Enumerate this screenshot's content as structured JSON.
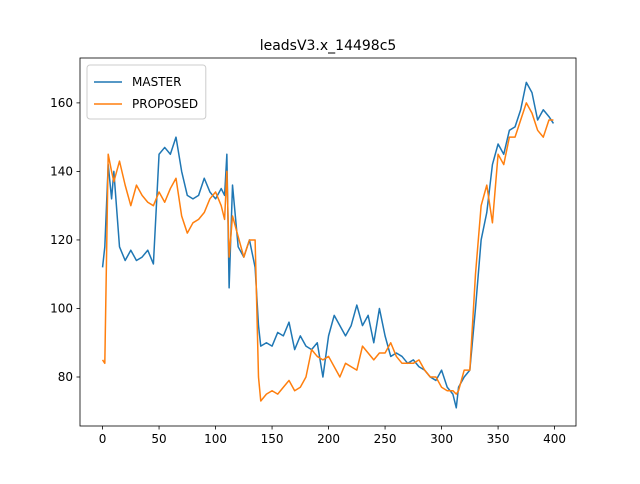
{
  "chart_data": {
    "type": "line",
    "title": "leadsV3.x_14498c5",
    "x": [
      0,
      2,
      5,
      8,
      10,
      15,
      20,
      25,
      30,
      35,
      40,
      45,
      50,
      55,
      60,
      65,
      70,
      75,
      80,
      85,
      90,
      95,
      100,
      105,
      108,
      110,
      112,
      115,
      120,
      125,
      130,
      135,
      138,
      140,
      145,
      150,
      155,
      160,
      165,
      170,
      175,
      180,
      185,
      190,
      195,
      200,
      205,
      210,
      215,
      220,
      225,
      230,
      235,
      240,
      245,
      250,
      255,
      260,
      265,
      270,
      275,
      280,
      285,
      290,
      295,
      300,
      305,
      310,
      313,
      315,
      320,
      325,
      330,
      335,
      340,
      345,
      350,
      355,
      360,
      365,
      370,
      375,
      380,
      385,
      390,
      395,
      399
    ],
    "series": [
      {
        "name": "MASTER",
        "color": "#1f77b4",
        "values": [
          112,
          118,
          142,
          132,
          140,
          118,
          114,
          117,
          114,
          115,
          117,
          113,
          145,
          147,
          145,
          150,
          140,
          133,
          132,
          133,
          138,
          134,
          132,
          135,
          133,
          145,
          106,
          136,
          118,
          115,
          120,
          112,
          95,
          89,
          90,
          89,
          93,
          92,
          96,
          88,
          92,
          89,
          88,
          90,
          80,
          92,
          98,
          95,
          92,
          95,
          101,
          95,
          98,
          90,
          100,
          92,
          86,
          87,
          86,
          84,
          85,
          83,
          82,
          80,
          79,
          82,
          77,
          75,
          71,
          77,
          80,
          82,
          100,
          120,
          128,
          142,
          148,
          145,
          152,
          153,
          158,
          166,
          163,
          155,
          158,
          156,
          154
        ]
      },
      {
        "name": "PROPOSED",
        "color": "#ff7f0e",
        "values": [
          85,
          84,
          145,
          140,
          137,
          143,
          136,
          130,
          136,
          133,
          131,
          130,
          134,
          131,
          135,
          138,
          127,
          122,
          125,
          126,
          128,
          132,
          134,
          130,
          126,
          140,
          115,
          127,
          121,
          115,
          120,
          120,
          80,
          73,
          75,
          76,
          75,
          77,
          79,
          76,
          77,
          80,
          88,
          86,
          85,
          86,
          83,
          80,
          84,
          83,
          82,
          89,
          87,
          85,
          87,
          87,
          90,
          86,
          84,
          84,
          84,
          85,
          82,
          80,
          80,
          77,
          76,
          76,
          75,
          76,
          82,
          82,
          110,
          130,
          136,
          125,
          145,
          142,
          150,
          150,
          155,
          160,
          157,
          152,
          150,
          155,
          155
        ]
      }
    ],
    "xlim": [
      -19.95,
      418.95
    ],
    "xticks": [
      0,
      50,
      100,
      150,
      200,
      250,
      300,
      350,
      400
    ],
    "ylim": [
      65.7,
      173.1
    ],
    "yticks": [
      80,
      100,
      120,
      140,
      160
    ],
    "legend": "upper left"
  }
}
